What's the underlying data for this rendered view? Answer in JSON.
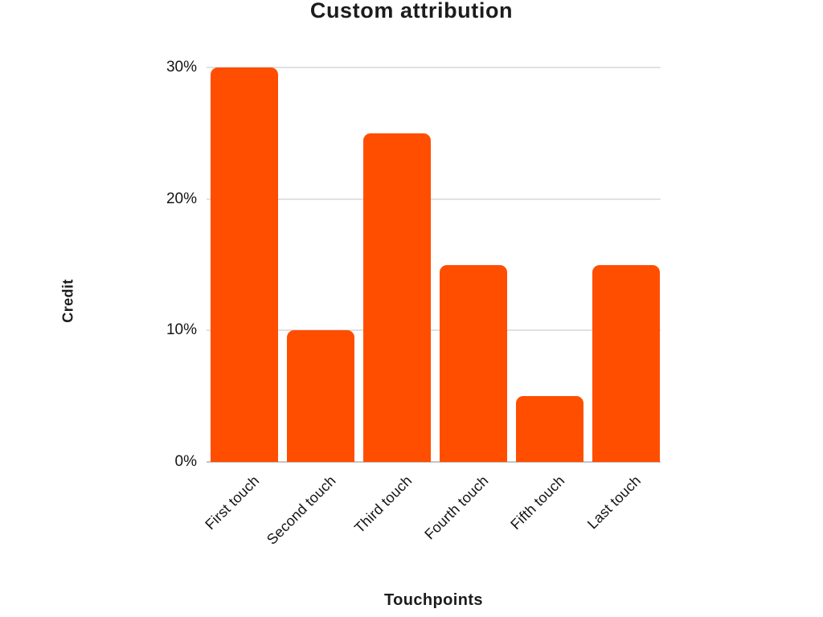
{
  "chart_data": {
    "type": "bar",
    "title": "Custom attribution",
    "xlabel": "Touchpoints",
    "ylabel": "Credit",
    "categories": [
      "First touch",
      "Second touch",
      "Third touch",
      "Fourth touch",
      "Fifth touch",
      "Last touch"
    ],
    "values": [
      30,
      10,
      25,
      15,
      5,
      15
    ],
    "unit": "%",
    "ylim": [
      0,
      30
    ],
    "ytick_values": [
      0,
      10,
      20,
      30
    ],
    "ytick_labels": [
      "0%",
      "10%",
      "20%",
      "30%"
    ],
    "grid": true,
    "legend": false,
    "bar_color": "#FF4E00",
    "gridline_color": "#E1E1E1",
    "axis_line_color": "#C4C4C4",
    "text_color": "#1A1A1A",
    "background_color": "#FFFFFF"
  }
}
